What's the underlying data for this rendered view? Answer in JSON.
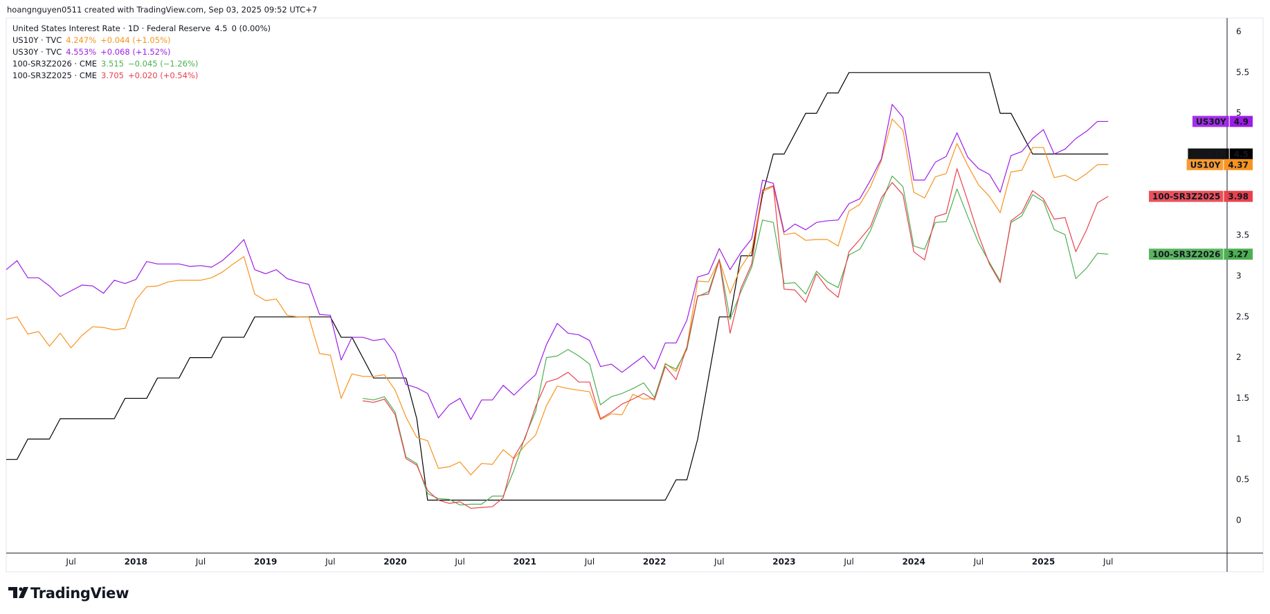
{
  "chart_data": {
    "type": "line",
    "header": "hoangnguyen0511 created with TradingView.com, Sep 03, 2025 09:52 UTC+7",
    "brand": "TradingView",
    "x": [
      "2017-01",
      "2017-02",
      "2017-03",
      "2017-04",
      "2017-05",
      "2017-06",
      "2017-07",
      "2017-08",
      "2017-09",
      "2017-10",
      "2017-11",
      "2017-12",
      "2018-01",
      "2018-02",
      "2018-03",
      "2018-04",
      "2018-05",
      "2018-06",
      "2018-07",
      "2018-08",
      "2018-09",
      "2018-10",
      "2018-11",
      "2018-12",
      "2019-01",
      "2019-02",
      "2019-03",
      "2019-04",
      "2019-05",
      "2019-06",
      "2019-07",
      "2019-08",
      "2019-09",
      "2019-10",
      "2019-11",
      "2019-12",
      "2020-01",
      "2020-02",
      "2020-03",
      "2020-04",
      "2020-05",
      "2020-06",
      "2020-07",
      "2020-08",
      "2020-09",
      "2020-10",
      "2020-11",
      "2020-12",
      "2021-01",
      "2021-02",
      "2021-03",
      "2021-04",
      "2021-05",
      "2021-06",
      "2021-07",
      "2021-08",
      "2021-09",
      "2021-10",
      "2021-11",
      "2021-12",
      "2022-01",
      "2022-02",
      "2022-03",
      "2022-04",
      "2022-05",
      "2022-06",
      "2022-07",
      "2022-08",
      "2022-09",
      "2022-10",
      "2022-11",
      "2022-12",
      "2023-01",
      "2023-02",
      "2023-03",
      "2023-04",
      "2023-05",
      "2023-06",
      "2023-07",
      "2023-08",
      "2023-09",
      "2023-10",
      "2023-11",
      "2023-12",
      "2024-01",
      "2024-02",
      "2024-03",
      "2024-04",
      "2024-05",
      "2024-06",
      "2024-07",
      "2024-08",
      "2024-09",
      "2024-10",
      "2024-11",
      "2024-12",
      "2025-01",
      "2025-02",
      "2025-03",
      "2025-04",
      "2025-05",
      "2025-06",
      "2025-07"
    ],
    "xlim": [
      "2017-01",
      "2026-06"
    ],
    "xticks": [
      {
        "value": "2017-07",
        "label": "Jul"
      },
      {
        "value": "2018-01",
        "label": "2018"
      },
      {
        "value": "2018-07",
        "label": "Jul"
      },
      {
        "value": "2019-01",
        "label": "2019"
      },
      {
        "value": "2019-07",
        "label": "Jul"
      },
      {
        "value": "2020-01",
        "label": "2020"
      },
      {
        "value": "2020-07",
        "label": "Jul"
      },
      {
        "value": "2021-01",
        "label": "2021"
      },
      {
        "value": "2021-07",
        "label": "Jul"
      },
      {
        "value": "2022-01",
        "label": "2022"
      },
      {
        "value": "2022-07",
        "label": "Jul"
      },
      {
        "value": "2023-01",
        "label": "2023"
      },
      {
        "value": "2023-07",
        "label": "Jul"
      },
      {
        "value": "2024-01",
        "label": "2024"
      },
      {
        "value": "2024-07",
        "label": "Jul"
      },
      {
        "value": "2025-01",
        "label": "2025"
      },
      {
        "value": "2025-07",
        "label": "Jul"
      }
    ],
    "ylim": [
      -0.4,
      6.17
    ],
    "yticks": [
      0,
      0.5,
      1,
      1.5,
      2,
      2.5,
      3,
      3.5,
      4,
      4.5,
      5,
      5.5,
      6
    ],
    "grid": false,
    "series": [
      {
        "name": "USINTR",
        "color": "#000000",
        "legend": "United States Interest Rate · 1D · Federal Reserve",
        "last": "4.5",
        "change": "0 (0.00%)",
        "tag": "4.5",
        "values": [
          0.75,
          0.75,
          1.0,
          1.0,
          1.0,
          1.25,
          1.25,
          1.25,
          1.25,
          1.25,
          1.25,
          1.5,
          1.5,
          1.5,
          1.75,
          1.75,
          1.75,
          2.0,
          2.0,
          2.0,
          2.25,
          2.25,
          2.25,
          2.5,
          2.5,
          2.5,
          2.5,
          2.5,
          2.5,
          2.5,
          2.5,
          2.25,
          2.25,
          2.0,
          1.75,
          1.75,
          1.75,
          1.75,
          1.25,
          0.25,
          0.25,
          0.25,
          0.25,
          0.25,
          0.25,
          0.25,
          0.25,
          0.25,
          0.25,
          0.25,
          0.25,
          0.25,
          0.25,
          0.25,
          0.25,
          0.25,
          0.25,
          0.25,
          0.25,
          0.25,
          0.25,
          0.25,
          0.5,
          0.5,
          1.0,
          1.75,
          2.5,
          2.5,
          3.25,
          3.25,
          4.0,
          4.5,
          4.5,
          4.75,
          5.0,
          5.0,
          5.25,
          5.25,
          5.5,
          5.5,
          5.5,
          5.5,
          5.5,
          5.5,
          5.5,
          5.5,
          5.5,
          5.5,
          5.5,
          5.5,
          5.5,
          5.5,
          5.0,
          5.0,
          4.75,
          4.5,
          4.5,
          4.5,
          4.5,
          4.5,
          4.5,
          4.5,
          4.5
        ]
      },
      {
        "name": "US10Y",
        "color": "#f7931e",
        "legend": "US10Y · TVC",
        "last": "4.247%",
        "change": "+0.044 (+1.05%)",
        "tag": "4.37",
        "values": [
          2.47,
          2.5,
          2.29,
          2.32,
          2.14,
          2.3,
          2.12,
          2.27,
          2.38,
          2.37,
          2.34,
          2.36,
          2.71,
          2.87,
          2.88,
          2.93,
          2.95,
          2.95,
          2.95,
          2.98,
          3.05,
          3.15,
          3.24,
          2.78,
          2.7,
          2.72,
          2.52,
          2.5,
          2.5,
          2.05,
          2.03,
          1.5,
          1.8,
          1.77,
          1.77,
          1.79,
          1.6,
          1.27,
          1.02,
          0.98,
          0.64,
          0.66,
          0.72,
          0.56,
          0.7,
          0.69,
          0.87,
          0.76,
          0.92,
          1.05,
          1.41,
          1.65,
          1.62,
          1.6,
          1.58,
          1.24,
          1.31,
          1.3,
          1.55,
          1.49,
          1.5,
          1.93,
          1.83,
          2.13,
          2.94,
          2.93,
          3.2,
          2.79,
          3.11,
          3.31,
          4.04,
          4.1,
          3.51,
          3.53,
          3.44,
          3.45,
          3.45,
          3.37,
          3.8,
          3.88,
          4.1,
          4.42,
          4.93,
          4.79,
          4.03,
          3.96,
          4.22,
          4.26,
          4.63,
          4.36,
          4.12,
          3.98,
          3.78,
          4.28,
          4.3,
          4.58,
          4.58,
          4.21,
          4.24,
          4.17,
          4.26,
          4.37,
          4.37
        ]
      },
      {
        "name": "US30Y",
        "color": "#9c1de6",
        "legend": "US30Y · TVC",
        "last": "4.553%",
        "change": "+0.068 (+1.52%)",
        "tag": "4.9",
        "values": [
          3.08,
          3.19,
          2.98,
          2.98,
          2.88,
          2.75,
          2.82,
          2.89,
          2.88,
          2.79,
          2.95,
          2.91,
          2.96,
          3.18,
          3.15,
          3.15,
          3.15,
          3.12,
          3.13,
          3.11,
          3.19,
          3.31,
          3.45,
          3.08,
          3.03,
          3.08,
          2.97,
          2.93,
          2.9,
          2.53,
          2.52,
          1.97,
          2.25,
          2.25,
          2.21,
          2.23,
          2.05,
          1.67,
          1.63,
          1.56,
          1.26,
          1.42,
          1.5,
          1.24,
          1.48,
          1.48,
          1.66,
          1.54,
          1.67,
          1.79,
          2.16,
          2.42,
          2.3,
          2.28,
          2.21,
          1.89,
          1.92,
          1.82,
          1.92,
          2.02,
          1.86,
          2.18,
          2.18,
          2.46,
          2.99,
          3.03,
          3.34,
          3.08,
          3.29,
          3.46,
          4.18,
          4.14,
          3.54,
          3.64,
          3.57,
          3.66,
          3.68,
          3.69,
          3.89,
          3.95,
          4.18,
          4.44,
          5.11,
          4.95,
          4.18,
          4.18,
          4.4,
          4.47,
          4.76,
          4.46,
          4.32,
          4.25,
          4.03,
          4.48,
          4.53,
          4.69,
          4.8,
          4.5,
          4.56,
          4.69,
          4.78,
          4.9,
          4.9
        ]
      },
      {
        "name": "100-SR3Z2026",
        "color": "#4caf50",
        "legend": "100-SR3Z2026 · CME",
        "last": "3.515",
        "change": "−0.045 (−1.26%)",
        "tag": "3.27",
        "values": [
          null,
          null,
          null,
          null,
          null,
          null,
          null,
          null,
          null,
          null,
          null,
          null,
          null,
          null,
          null,
          null,
          null,
          null,
          null,
          null,
          null,
          null,
          null,
          null,
          null,
          null,
          null,
          null,
          null,
          null,
          null,
          null,
          null,
          1.5,
          1.48,
          1.52,
          1.33,
          0.78,
          0.7,
          0.33,
          0.27,
          0.26,
          0.19,
          0.2,
          0.2,
          0.3,
          0.3,
          0.62,
          1.02,
          1.34,
          2.0,
          2.02,
          2.1,
          2.02,
          1.92,
          1.42,
          1.52,
          1.56,
          1.62,
          1.69,
          1.51,
          1.92,
          1.86,
          2.1,
          2.75,
          2.81,
          3.21,
          2.47,
          2.81,
          3.11,
          3.69,
          3.66,
          2.91,
          2.92,
          2.78,
          3.06,
          2.93,
          2.86,
          3.26,
          3.33,
          3.56,
          3.9,
          4.23,
          4.1,
          3.37,
          3.33,
          3.66,
          3.67,
          4.07,
          3.73,
          3.41,
          3.17,
          2.94,
          3.66,
          3.74,
          4.0,
          3.92,
          3.57,
          3.51,
          2.97,
          3.1,
          3.28,
          3.27
        ]
      },
      {
        "name": "100-SR3Z2025",
        "color": "#e8424c",
        "legend": "100-SR3Z2025 · CME",
        "last": "3.705",
        "change": "+0.020 (+0.54%)",
        "tag": "3.98",
        "values": [
          null,
          null,
          null,
          null,
          null,
          null,
          null,
          null,
          null,
          null,
          null,
          null,
          null,
          null,
          null,
          null,
          null,
          null,
          null,
          null,
          null,
          null,
          null,
          null,
          null,
          null,
          null,
          null,
          null,
          null,
          null,
          null,
          null,
          1.47,
          1.45,
          1.49,
          1.3,
          0.76,
          0.68,
          0.37,
          0.25,
          0.21,
          0.23,
          0.15,
          0.16,
          0.17,
          0.28,
          0.78,
          1.0,
          1.4,
          1.7,
          1.74,
          1.82,
          1.7,
          1.7,
          1.25,
          1.33,
          1.43,
          1.49,
          1.56,
          1.48,
          1.89,
          1.73,
          2.13,
          2.76,
          2.78,
          3.2,
          2.3,
          2.85,
          3.15,
          4.06,
          4.11,
          2.84,
          2.83,
          2.68,
          3.03,
          2.85,
          2.74,
          3.3,
          3.45,
          3.61,
          3.96,
          4.15,
          4.0,
          3.3,
          3.2,
          3.73,
          3.77,
          4.32,
          3.92,
          3.5,
          3.15,
          2.92,
          3.68,
          3.78,
          4.05,
          3.95,
          3.7,
          3.72,
          3.3,
          3.57,
          3.9,
          3.98
        ]
      }
    ]
  }
}
